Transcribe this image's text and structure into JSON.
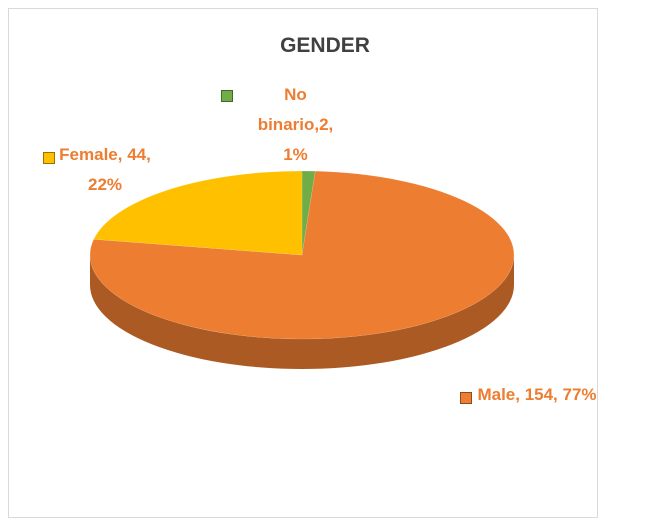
{
  "chart_data": {
    "type": "pie3d",
    "title": "GENDER",
    "categories": [
      "No binario",
      "Male",
      "Female"
    ],
    "values": [
      2,
      154,
      44
    ],
    "value_labels": [
      "No binario,2, 1%",
      "Male, 154, 77%",
      "Female, 44, 22%"
    ],
    "colors": [
      "#70AD47",
      "#ED7D31",
      "#FFC000"
    ]
  }
}
